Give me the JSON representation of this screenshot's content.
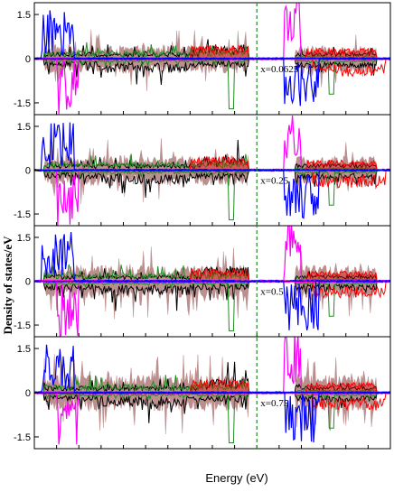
{
  "chart_data": {
    "type": "line",
    "ylabel": "Density of states/eV",
    "xlabel": "Energy (eV)",
    "xlim": [
      -10,
      6
    ],
    "fermi_level": 0,
    "y_ticks": [
      1.5,
      0,
      -1.5
    ],
    "y_tick_labels": [
      "1.5",
      "0",
      "-1.5"
    ],
    "series_colors": {
      "total": "#000000",
      "d_up": "#bc8f8f",
      "green": "#228b22",
      "red": "#ff0000",
      "magenta": "#ff00ff",
      "blue": "#0000ff"
    },
    "panels": [
      {
        "label": "x=0.0625",
        "ylim": [
          -1.9,
          1.9
        ]
      },
      {
        "label": "x=0.25",
        "ylim": [
          -1.9,
          1.9
        ]
      },
      {
        "label": "x=0.5",
        "ylim": [
          -1.9,
          1.9
        ]
      },
      {
        "label": "x=0.75",
        "ylim": [
          -1.9,
          1.9
        ]
      }
    ]
  }
}
